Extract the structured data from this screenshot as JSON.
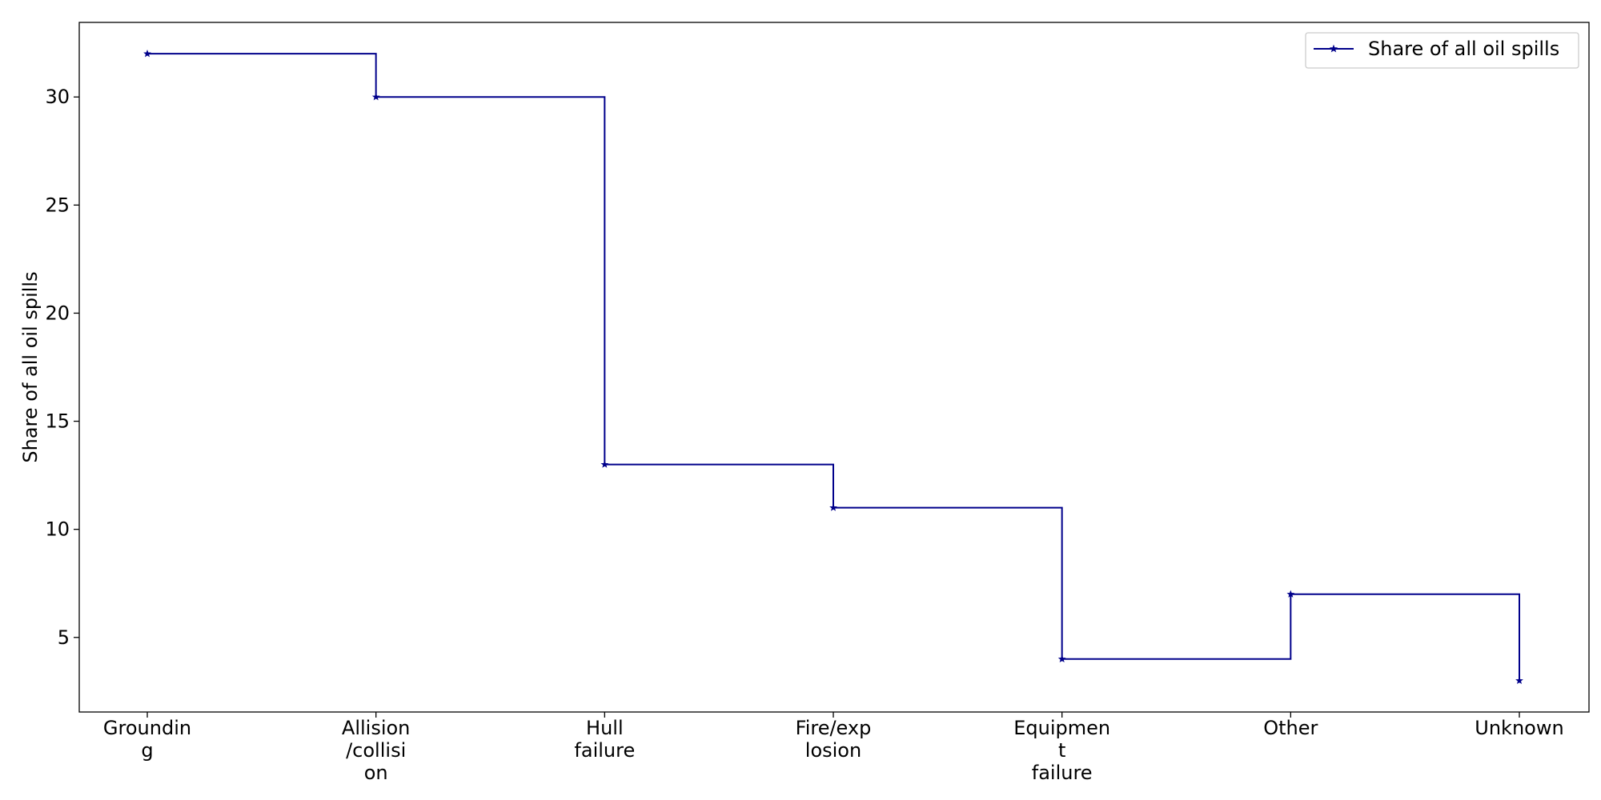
{
  "chart_data": {
    "type": "line",
    "step": "post",
    "categories": [
      [
        "Groundin",
        "g"
      ],
      [
        "Allision",
        "/collisi",
        "on"
      ],
      [
        "Hull",
        "failure"
      ],
      [
        "Fire/exp",
        "losion"
      ],
      [
        "Equipmen",
        "t",
        "failure"
      ],
      [
        "Other"
      ],
      [
        "Unknown"
      ]
    ],
    "series": [
      {
        "name": "Share of all oil spills",
        "values": [
          32,
          30,
          13,
          11,
          4,
          7,
          3
        ],
        "color": "#00008b",
        "marker": "star"
      }
    ],
    "title": "",
    "xlabel": "",
    "ylabel": "Share of all oil spills",
    "ylim": [
      1.55,
      33.45
    ],
    "yticks": [
      5,
      10,
      15,
      20,
      25,
      30
    ],
    "grid": false,
    "legend": "top-right"
  }
}
